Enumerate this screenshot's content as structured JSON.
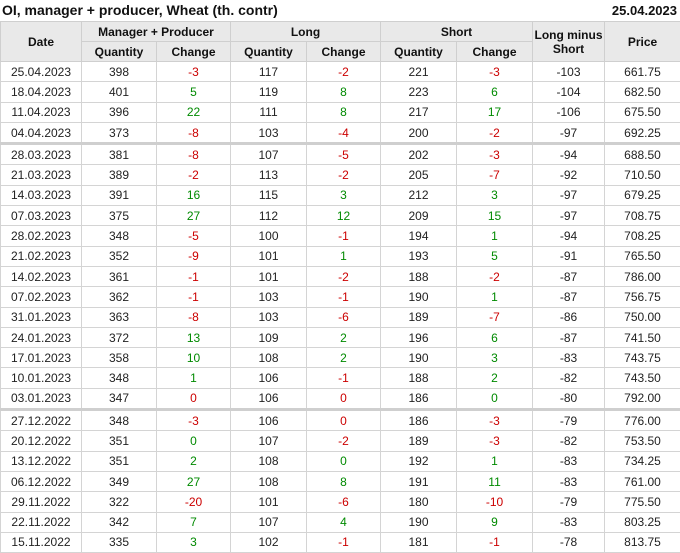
{
  "header": {
    "title": "OI, manager + producer, Wheat (th. contr)",
    "date": "25.04.2023"
  },
  "columns": {
    "date": "Date",
    "mp": "Manager + Producer",
    "long": "Long",
    "short": "Short",
    "lms": "Long minus Short",
    "price": "Price",
    "quantity": "Quantity",
    "change": "Change"
  },
  "colors": {
    "negative": "#cc0000",
    "positive": "#008a00"
  },
  "rows": [
    {
      "date": "25.04.2023",
      "mp_q": "398",
      "mp_c": "-3",
      "mp_cc": "r",
      "l_q": "117",
      "l_c": "-2",
      "l_cc": "r",
      "s_q": "221",
      "s_c": "-3",
      "s_cc": "r",
      "lms": "-103",
      "price": "661.75"
    },
    {
      "date": "18.04.2023",
      "mp_q": "401",
      "mp_c": "5",
      "mp_cc": "g",
      "l_q": "119",
      "l_c": "8",
      "l_cc": "g",
      "s_q": "223",
      "s_c": "6",
      "s_cc": "g",
      "lms": "-104",
      "price": "682.50"
    },
    {
      "date": "11.04.2023",
      "mp_q": "396",
      "mp_c": "22",
      "mp_cc": "g",
      "l_q": "111",
      "l_c": "8",
      "l_cc": "g",
      "s_q": "217",
      "s_c": "17",
      "s_cc": "g",
      "lms": "-106",
      "price": "675.50"
    },
    {
      "date": "04.04.2023",
      "mp_q": "373",
      "mp_c": "-8",
      "mp_cc": "r",
      "l_q": "103",
      "l_c": "-4",
      "l_cc": "r",
      "s_q": "200",
      "s_c": "-2",
      "s_cc": "r",
      "lms": "-97",
      "price": "692.25"
    },
    {
      "date": "28.03.2023",
      "mp_q": "381",
      "mp_c": "-8",
      "mp_cc": "r",
      "l_q": "107",
      "l_c": "-5",
      "l_cc": "r",
      "s_q": "202",
      "s_c": "-3",
      "s_cc": "r",
      "lms": "-94",
      "price": "688.50",
      "sep": true
    },
    {
      "date": "21.03.2023",
      "mp_q": "389",
      "mp_c": "-2",
      "mp_cc": "r",
      "l_q": "113",
      "l_c": "-2",
      "l_cc": "r",
      "s_q": "205",
      "s_c": "-7",
      "s_cc": "r",
      "lms": "-92",
      "price": "710.50"
    },
    {
      "date": "14.03.2023",
      "mp_q": "391",
      "mp_c": "16",
      "mp_cc": "g",
      "l_q": "115",
      "l_c": "3",
      "l_cc": "g",
      "s_q": "212",
      "s_c": "3",
      "s_cc": "g",
      "lms": "-97",
      "price": "679.25"
    },
    {
      "date": "07.03.2023",
      "mp_q": "375",
      "mp_c": "27",
      "mp_cc": "g",
      "l_q": "112",
      "l_c": "12",
      "l_cc": "g",
      "s_q": "209",
      "s_c": "15",
      "s_cc": "g",
      "lms": "-97",
      "price": "708.75"
    },
    {
      "date": "28.02.2023",
      "mp_q": "348",
      "mp_c": "-5",
      "mp_cc": "r",
      "l_q": "100",
      "l_c": "-1",
      "l_cc": "r",
      "s_q": "194",
      "s_c": "1",
      "s_cc": "g",
      "lms": "-94",
      "price": "708.25"
    },
    {
      "date": "21.02.2023",
      "mp_q": "352",
      "mp_c": "-9",
      "mp_cc": "r",
      "l_q": "101",
      "l_c": "1",
      "l_cc": "g",
      "s_q": "193",
      "s_c": "5",
      "s_cc": "g",
      "lms": "-91",
      "price": "765.50"
    },
    {
      "date": "14.02.2023",
      "mp_q": "361",
      "mp_c": "-1",
      "mp_cc": "r",
      "l_q": "101",
      "l_c": "-2",
      "l_cc": "r",
      "s_q": "188",
      "s_c": "-2",
      "s_cc": "r",
      "lms": "-87",
      "price": "786.00"
    },
    {
      "date": "07.02.2023",
      "mp_q": "362",
      "mp_c": "-1",
      "mp_cc": "r",
      "l_q": "103",
      "l_c": "-1",
      "l_cc": "r",
      "s_q": "190",
      "s_c": "1",
      "s_cc": "g",
      "lms": "-87",
      "price": "756.75"
    },
    {
      "date": "31.01.2023",
      "mp_q": "363",
      "mp_c": "-8",
      "mp_cc": "r",
      "l_q": "103",
      "l_c": "-6",
      "l_cc": "r",
      "s_q": "189",
      "s_c": "-7",
      "s_cc": "r",
      "lms": "-86",
      "price": "750.00"
    },
    {
      "date": "24.01.2023",
      "mp_q": "372",
      "mp_c": "13",
      "mp_cc": "g",
      "l_q": "109",
      "l_c": "2",
      "l_cc": "g",
      "s_q": "196",
      "s_c": "6",
      "s_cc": "g",
      "lms": "-87",
      "price": "741.50"
    },
    {
      "date": "17.01.2023",
      "mp_q": "358",
      "mp_c": "10",
      "mp_cc": "g",
      "l_q": "108",
      "l_c": "2",
      "l_cc": "g",
      "s_q": "190",
      "s_c": "3",
      "s_cc": "g",
      "lms": "-83",
      "price": "743.75"
    },
    {
      "date": "10.01.2023",
      "mp_q": "348",
      "mp_c": "1",
      "mp_cc": "g",
      "l_q": "106",
      "l_c": "-1",
      "l_cc": "r",
      "s_q": "188",
      "s_c": "2",
      "s_cc": "g",
      "lms": "-82",
      "price": "743.50"
    },
    {
      "date": "03.01.2023",
      "mp_q": "347",
      "mp_c": "0",
      "mp_cc": "r",
      "l_q": "106",
      "l_c": "0",
      "l_cc": "r",
      "s_q": "186",
      "s_c": "0",
      "s_cc": "g",
      "lms": "-80",
      "price": "792.00"
    },
    {
      "date": "27.12.2022",
      "mp_q": "348",
      "mp_c": "-3",
      "mp_cc": "r",
      "l_q": "106",
      "l_c": "0",
      "l_cc": "r",
      "s_q": "186",
      "s_c": "-3",
      "s_cc": "r",
      "lms": "-79",
      "price": "776.00",
      "sep": true
    },
    {
      "date": "20.12.2022",
      "mp_q": "351",
      "mp_c": "0",
      "mp_cc": "g",
      "l_q": "107",
      "l_c": "-2",
      "l_cc": "r",
      "s_q": "189",
      "s_c": "-3",
      "s_cc": "r",
      "lms": "-82",
      "price": "753.50"
    },
    {
      "date": "13.12.2022",
      "mp_q": "351",
      "mp_c": "2",
      "mp_cc": "g",
      "l_q": "108",
      "l_c": "0",
      "l_cc": "g",
      "s_q": "192",
      "s_c": "1",
      "s_cc": "g",
      "lms": "-83",
      "price": "734.25"
    },
    {
      "date": "06.12.2022",
      "mp_q": "349",
      "mp_c": "27",
      "mp_cc": "g",
      "l_q": "108",
      "l_c": "8",
      "l_cc": "g",
      "s_q": "191",
      "s_c": "11",
      "s_cc": "g",
      "lms": "-83",
      "price": "761.00"
    },
    {
      "date": "29.11.2022",
      "mp_q": "322",
      "mp_c": "-20",
      "mp_cc": "r",
      "l_q": "101",
      "l_c": "-6",
      "l_cc": "r",
      "s_q": "180",
      "s_c": "-10",
      "s_cc": "r",
      "lms": "-79",
      "price": "775.50"
    },
    {
      "date": "22.11.2022",
      "mp_q": "342",
      "mp_c": "7",
      "mp_cc": "g",
      "l_q": "107",
      "l_c": "4",
      "l_cc": "g",
      "s_q": "190",
      "s_c": "9",
      "s_cc": "g",
      "lms": "-83",
      "price": "803.25"
    },
    {
      "date": "15.11.2022",
      "mp_q": "335",
      "mp_c": "3",
      "mp_cc": "g",
      "l_q": "102",
      "l_c": "-1",
      "l_cc": "r",
      "s_q": "181",
      "s_c": "-1",
      "s_cc": "r",
      "lms": "-78",
      "price": "813.75"
    }
  ]
}
